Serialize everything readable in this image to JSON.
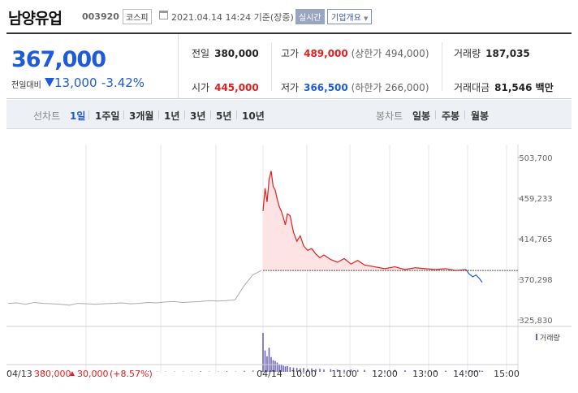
{
  "header": {
    "name": "남양유업",
    "code": "003920",
    "market": "코스피",
    "datetime": "2021.04.14 14:24 기준(장중)",
    "realtime_label": "실시간",
    "company_label": "기업개요"
  },
  "quote": {
    "price": "367,000",
    "change_label": "전일대비",
    "change_value": "13,000",
    "change_rate": "-3.42%",
    "prev_close_label": "전일",
    "prev_close": "380,000",
    "open_label": "시가",
    "open": "445,000",
    "high_label": "고가",
    "high": "489,000",
    "upper_limit": "(상한가 494,000)",
    "low_label": "저가",
    "low": "366,500",
    "lower_limit": "(하한가 266,000)",
    "volume_label": "거래량",
    "volume": "187,035",
    "amount_label": "거래대금",
    "amount": "81,546 백만"
  },
  "tabs": {
    "line_label": "선차트",
    "line_items": [
      "1일",
      "1주일",
      "3개월",
      "1년",
      "3년",
      "5년",
      "10년"
    ],
    "active": "1일",
    "candle_label": "봉차트",
    "candle_items": [
      "일봉",
      "주봉",
      "월봉"
    ]
  },
  "colors": {
    "up": "#e0201f",
    "down": "#1f5bd6",
    "prev_day_line": "#aaaaaa",
    "volume": "#6c63b5"
  },
  "chart_data": {
    "type": "line",
    "y_ticks": [
      "503,700",
      "459,233",
      "414,765",
      "370,298",
      "325,830"
    ],
    "ylim": [
      325830,
      503700
    ],
    "reference_value": 380000,
    "volume_legend": "거래량",
    "x_ticks": [
      "04/13",
      "04/14",
      "10:00",
      "11:00",
      "12:00",
      "13:00",
      "14:00",
      "15:00"
    ],
    "prev_day_summary": {
      "date": "04/13",
      "close": "380,000",
      "change": "30,000",
      "rate": "(+8.57%)"
    },
    "prev_day": {
      "values": [
        344000,
        344500,
        343000,
        345000,
        344000,
        343500,
        343000,
        342000,
        344000,
        343500,
        343000,
        343500,
        344000,
        344500,
        343500,
        344000,
        345000,
        344500,
        345500,
        346000,
        345000,
        345500,
        346000,
        347000,
        346500,
        347000,
        348000,
        363000,
        375000,
        380000
      ]
    },
    "today": {
      "times": [
        "09:00",
        "09:03",
        "09:06",
        "09:09",
        "09:12",
        "09:15",
        "09:18",
        "09:21",
        "09:24",
        "09:27",
        "09:30",
        "09:33",
        "09:36",
        "09:40",
        "09:45",
        "09:50",
        "09:55",
        "10:00",
        "10:06",
        "10:12",
        "10:18",
        "10:24",
        "10:30",
        "10:40",
        "10:50",
        "11:00",
        "11:10",
        "11:20",
        "11:30",
        "11:45",
        "12:00",
        "12:15",
        "12:30",
        "12:45",
        "13:00",
        "13:15",
        "13:30",
        "13:45",
        "14:00",
        "14:05",
        "14:10",
        "14:15",
        "14:20",
        "14:24"
      ],
      "values": [
        445000,
        470000,
        455000,
        480000,
        489000,
        472000,
        468000,
        458000,
        450000,
        445000,
        438000,
        430000,
        442000,
        440000,
        422000,
        412000,
        418000,
        407000,
        402000,
        404000,
        398000,
        394000,
        397000,
        392000,
        389000,
        393000,
        387000,
        391000,
        386000,
        384000,
        382000,
        384000,
        381000,
        383000,
        382000,
        381000,
        382000,
        380000,
        381000,
        376000,
        373000,
        375000,
        371000,
        367000
      ]
    },
    "volume": {
      "prev_day": [
        2,
        1,
        1,
        1,
        2,
        1,
        1,
        1,
        1,
        1,
        2,
        1,
        1,
        1,
        1,
        1,
        2,
        1,
        1,
        1,
        1,
        1,
        2,
        1,
        1,
        2,
        1,
        3,
        4,
        3
      ],
      "today": [
        100,
        55,
        40,
        62,
        38,
        30,
        28,
        24,
        20,
        18,
        16,
        14,
        15,
        12,
        11,
        10,
        9,
        10,
        8,
        9,
        7,
        8,
        6,
        7,
        6,
        5,
        6,
        5,
        5,
        4,
        4,
        5,
        4,
        4,
        3,
        4,
        3,
        4,
        3,
        4,
        3,
        3,
        4,
        3
      ]
    }
  }
}
